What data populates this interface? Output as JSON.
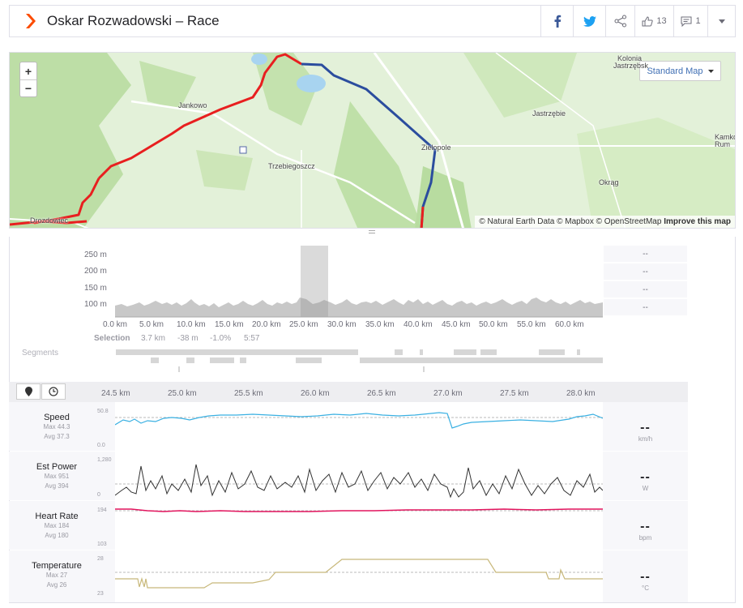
{
  "header": {
    "title": "Oskar Rozwadowski – Race",
    "kudos_count": "13",
    "comments_count": "1",
    "colors": {
      "brand": "#fc4c02",
      "facebook": "#3b5998",
      "twitter": "#1da1f2"
    }
  },
  "map": {
    "zoom_in": "+",
    "zoom_out": "−",
    "style_selector": "Standard Map",
    "places": [
      "Kolonia Jastrzębsk",
      "Jankowo",
      "Jastrzębie",
      "Kamko Rum",
      "Zielopole",
      "Trzebiegoszcz",
      "Okrąg",
      "Drozdowiec"
    ],
    "attribution_prefix": "© Natural Earth Data © Mapbox © OpenStreetMap",
    "attribution_link": "Improve this map",
    "colors": {
      "route": "#e81f1f",
      "selection": "#2b4d9e",
      "land": "#e3f1d9",
      "forest": "#b8dca0",
      "water": "#a8d4f0"
    }
  },
  "elevation": {
    "y_ticks": [
      "250 m",
      "200 m",
      "150 m",
      "100 m"
    ],
    "x_ticks": [
      "0.0 km",
      "5.0 km",
      "10.0 km",
      "15.0 km",
      "20.0 km",
      "25.0 km",
      "30.0 km",
      "35.0 km",
      "40.0 km",
      "45.0 km",
      "50.0 km",
      "55.0 km",
      "60.0 km"
    ],
    "stat_placeholders": [
      "--",
      "--",
      "--",
      "--"
    ],
    "selection": {
      "label": "Selection",
      "distance": "3.7 km",
      "elev": "-38 m",
      "grade": "-1.0%",
      "time": "5:57"
    },
    "segments_label": "Segments"
  },
  "streams": {
    "x_ticks": [
      "24.5 km",
      "25.0 km",
      "25.5 km",
      "26.0 km",
      "26.5 km",
      "27.0 km",
      "27.5 km",
      "28.0 km"
    ],
    "metrics": [
      {
        "name": "Speed",
        "max": "Max 44.3",
        "avg": "Avg 37.3",
        "ymax": "50.8",
        "ymin": "0.0",
        "value": "--",
        "unit": "km/h",
        "color": "#3ab0e2"
      },
      {
        "name": "Est Power",
        "max": "Max 951",
        "avg": "Avg 394",
        "ymax": "1,280",
        "ymin": "0",
        "value": "--",
        "unit": "W",
        "color": "#333333"
      },
      {
        "name": "Heart Rate",
        "max": "Max 184",
        "avg": "Avg 180",
        "ymax": "194",
        "ymin": "103",
        "value": "--",
        "unit": "bpm",
        "color": "#e2155e"
      },
      {
        "name": "Temperature",
        "max": "Max 27",
        "avg": "Avg 26",
        "ymax": "28",
        "ymin": "23",
        "value": "--",
        "unit": "°C",
        "color": "#c8b87a"
      }
    ]
  }
}
